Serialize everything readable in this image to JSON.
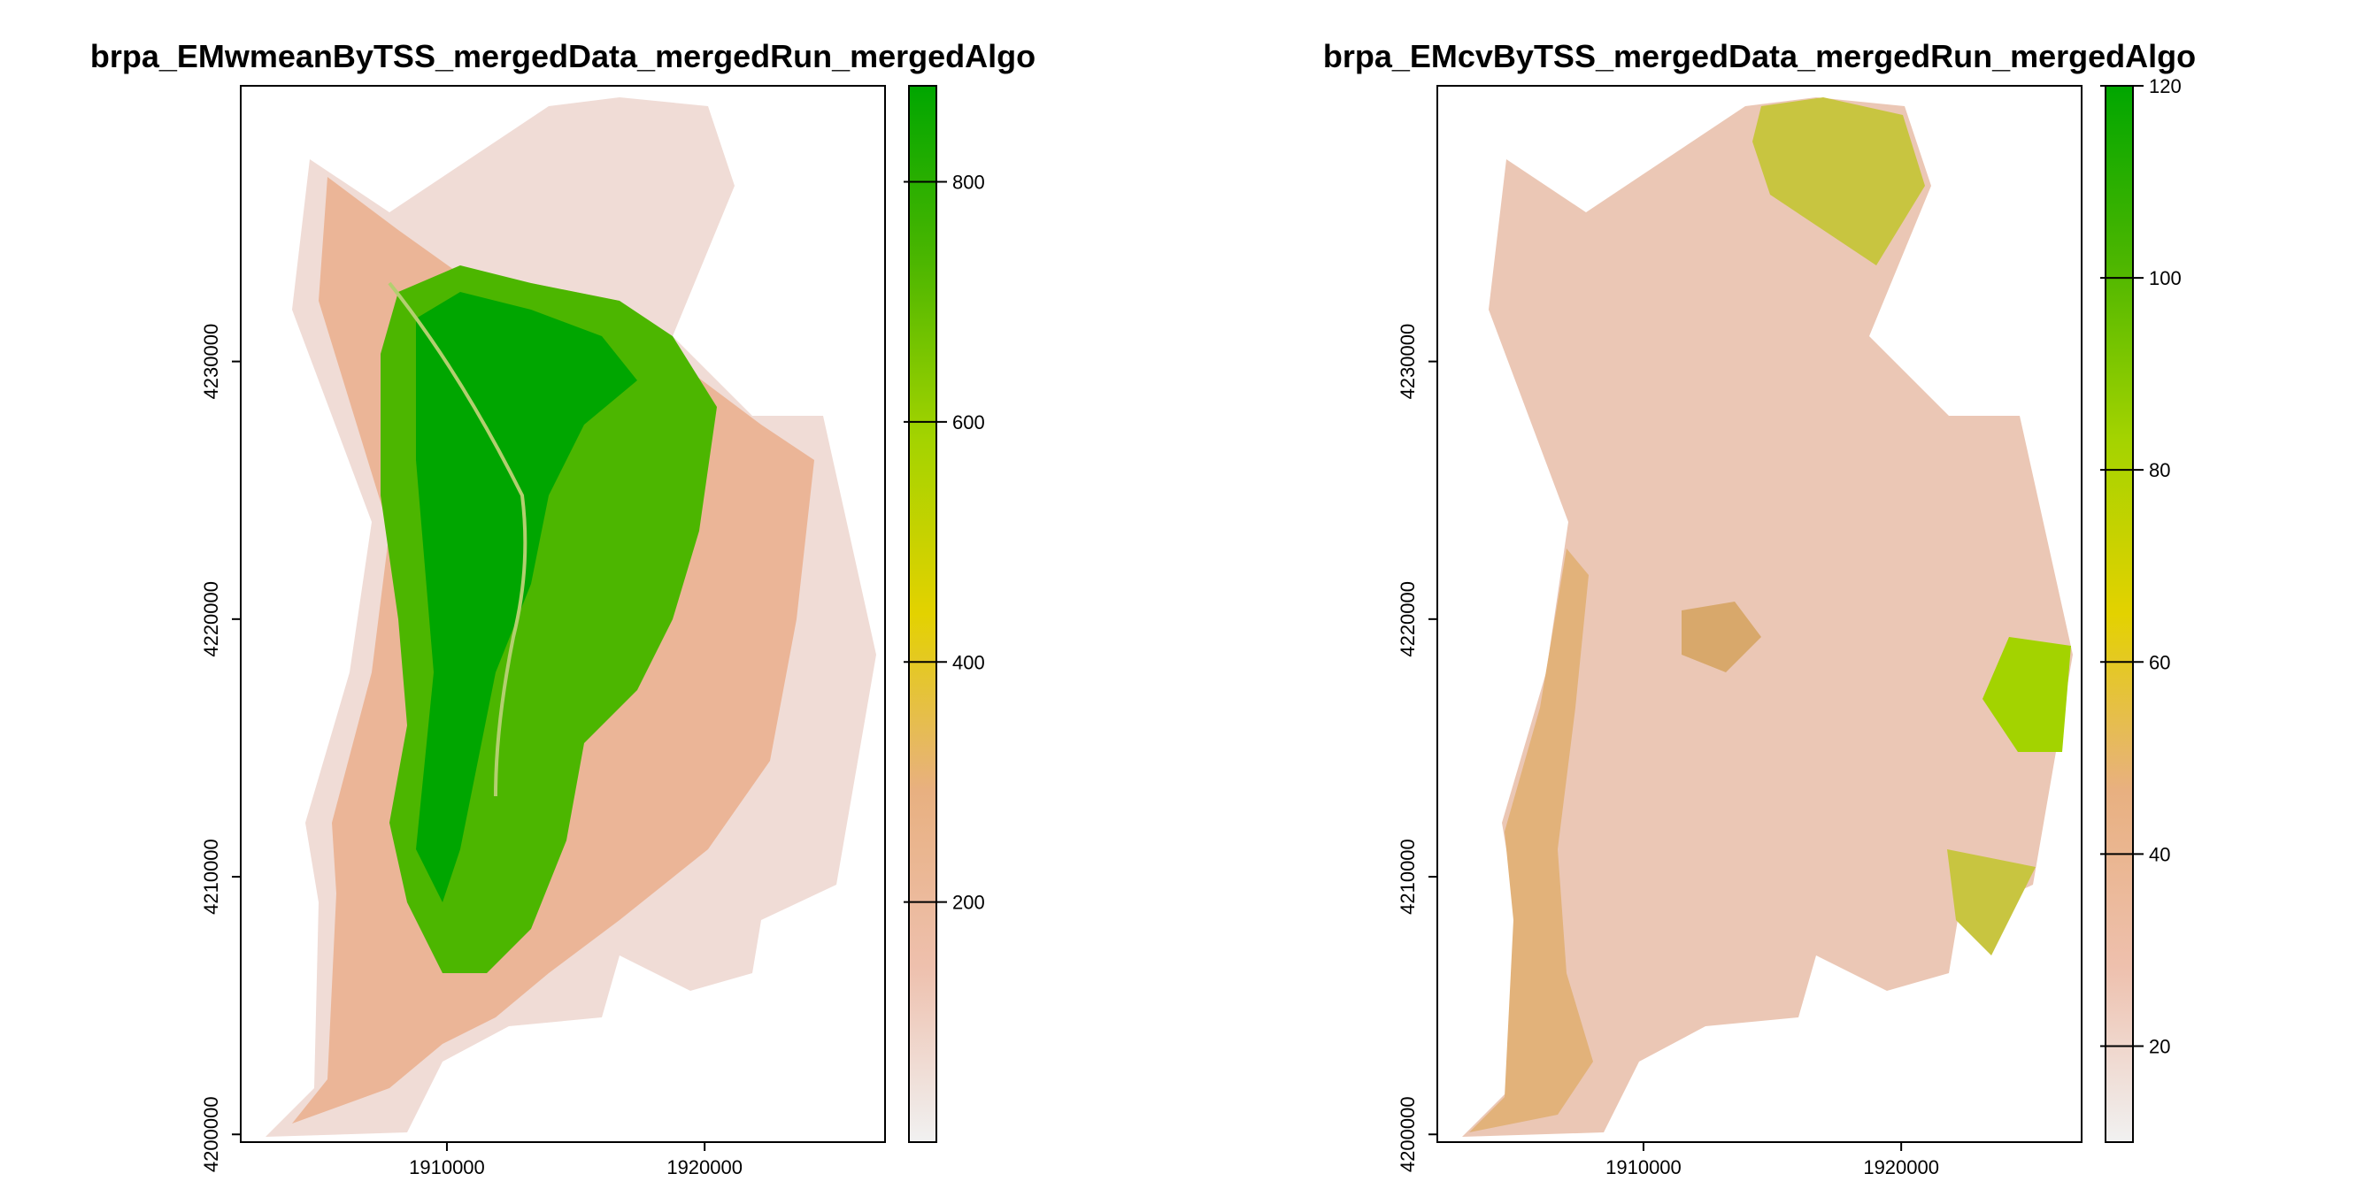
{
  "chart_data": [
    {
      "type": "heatmap",
      "title": "brpa_EMwmeanByTSS_mergedData_mergedRun_mergedAlgo",
      "xlabel": "",
      "ylabel": "",
      "xlim": [
        1902000,
        1927000
      ],
      "ylim": [
        4199700,
        4240700
      ],
      "x_ticks": [
        1910000,
        1920000
      ],
      "x_tick_labels": [
        "1910000",
        "1920000"
      ],
      "y_ticks": [
        4200000,
        4210000,
        4220000,
        4230000
      ],
      "y_tick_labels": [
        "4200000",
        "4210000",
        "4220000",
        "4230000"
      ],
      "colorbar": {
        "range": [
          0,
          880
        ],
        "ticks": [
          200,
          400,
          600,
          800
        ],
        "tick_labels": [
          "200",
          "400",
          "600",
          "800"
        ],
        "colors": [
          "#f1f1f1",
          "#eec0ad",
          "#e8b080",
          "#e3d200",
          "#a3d300",
          "#4cb600",
          "#00a600"
        ]
      },
      "grid": false
    },
    {
      "type": "heatmap",
      "title": "brpa_EMcvByTSS_mergedData_mergedRun_mergedAlgo",
      "xlabel": "",
      "ylabel": "",
      "xlim": [
        1902000,
        1927000
      ],
      "ylim": [
        4199700,
        4240700
      ],
      "x_ticks": [
        1910000,
        1920000
      ],
      "x_tick_labels": [
        "1910000",
        "1920000"
      ],
      "y_ticks": [
        4200000,
        4210000,
        4220000,
        4230000
      ],
      "y_tick_labels": [
        "4200000",
        "4210000",
        "4220000",
        "4230000"
      ],
      "colorbar": {
        "range": [
          10,
          120
        ],
        "ticks": [
          20,
          40,
          60,
          80,
          100,
          120
        ],
        "tick_labels": [
          "20",
          "40",
          "60",
          "80",
          "100",
          "120"
        ],
        "colors": [
          "#f1f1f1",
          "#eec0ad",
          "#e8b080",
          "#e3d200",
          "#a3d300",
          "#4cb600",
          "#00a600"
        ]
      },
      "grid": false
    }
  ]
}
